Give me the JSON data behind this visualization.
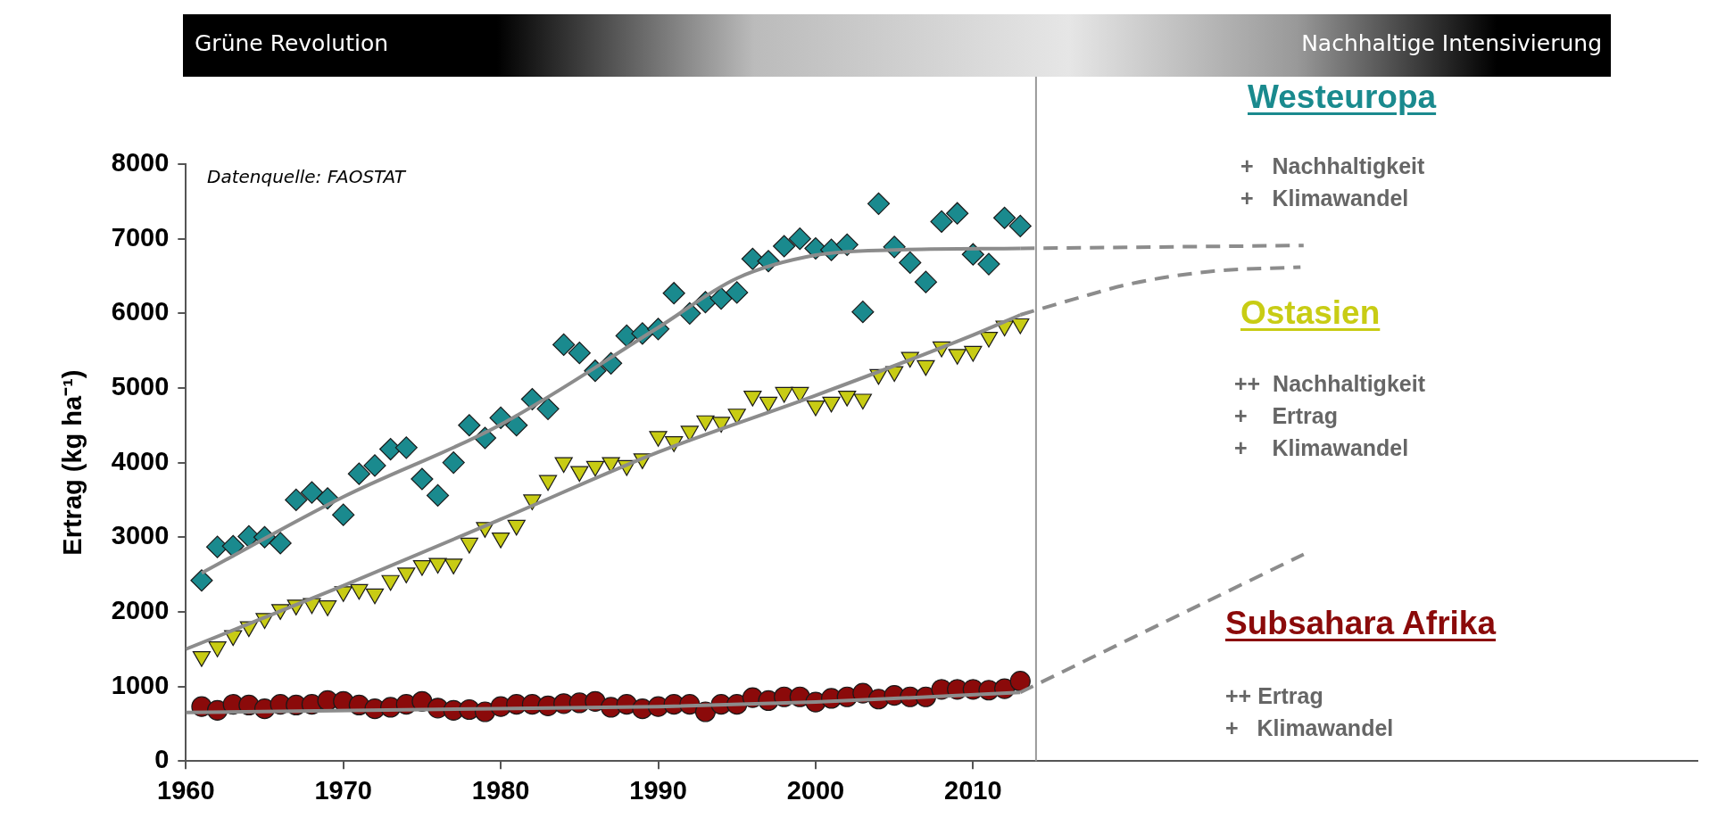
{
  "chart_data": {
    "type": "scatter",
    "ylabel": "Ertrag (kg ha⁻¹)",
    "xlim": [
      1960,
      2056
    ],
    "xticks": [
      1960,
      1970,
      1980,
      1990,
      2000,
      2010
    ],
    "ylim": [
      0,
      8000
    ],
    "yticks": [
      0,
      1000,
      2000,
      3000,
      4000,
      5000,
      6000,
      7000,
      8000
    ],
    "grid": false,
    "legend": false,
    "ref_lines": [
      {
        "axis": "x",
        "value": 2014,
        "color": "#999999"
      }
    ],
    "annotations": [
      "Grüne Revolution",
      "Nachhaltige Intensivierung",
      "Datenquelle: FAOSTAT",
      "+   Nachhaltigkeit\n+   Klimawandel",
      "++  Nachhaltigkeit\n+    Ertrag\n+    Klimawandel",
      "++ Ertrag\n+   Klimawandel"
    ],
    "series": [
      {
        "name": "Westeuropa",
        "marker": "diamond",
        "color": "#1a8a8e",
        "x": [
          1961,
          1962,
          1963,
          1964,
          1965,
          1966,
          1967,
          1968,
          1969,
          1970,
          1971,
          1972,
          1973,
          1974,
          1975,
          1976,
          1977,
          1978,
          1979,
          1980,
          1981,
          1982,
          1983,
          1984,
          1985,
          1986,
          1987,
          1988,
          1989,
          1990,
          1991,
          1992,
          1993,
          1994,
          1995,
          1996,
          1997,
          1998,
          1999,
          2000,
          2001,
          2002,
          2003,
          2004,
          2005,
          2006,
          2007,
          2008,
          2009,
          2010,
          2011,
          2012,
          2013
        ],
        "values": [
          2420,
          2870,
          2880,
          3010,
          3000,
          2920,
          3500,
          3600,
          3520,
          3300,
          3850,
          3960,
          4180,
          4200,
          3780,
          3560,
          4000,
          4500,
          4330,
          4600,
          4500,
          4850,
          4720,
          5580,
          5470,
          5230,
          5330,
          5700,
          5730,
          5790,
          6270,
          6000,
          6150,
          6200,
          6280,
          6730,
          6700,
          6900,
          7000,
          6870,
          6850,
          6920,
          6020,
          7470,
          6890,
          6680,
          6420,
          7230,
          7340,
          6790,
          6660,
          7280,
          7170
        ]
      },
      {
        "name": "Ostasien",
        "marker": "triangle",
        "color": "#c8cc14",
        "x": [
          1961,
          1962,
          1963,
          1964,
          1965,
          1966,
          1967,
          1968,
          1969,
          1970,
          1971,
          1972,
          1973,
          1974,
          1975,
          1976,
          1977,
          1978,
          1979,
          1980,
          1981,
          1982,
          1983,
          1984,
          1985,
          1986,
          1987,
          1988,
          1989,
          1990,
          1991,
          1992,
          1993,
          1994,
          1995,
          1996,
          1997,
          1998,
          1999,
          2000,
          2001,
          2002,
          2003,
          2004,
          2005,
          2006,
          2007,
          2008,
          2009,
          2010,
          2011,
          2012,
          2013
        ],
        "values": [
          1400,
          1530,
          1680,
          1800,
          1910,
          2030,
          2090,
          2110,
          2080,
          2270,
          2300,
          2240,
          2420,
          2520,
          2620,
          2650,
          2640,
          2920,
          3130,
          2990,
          3160,
          3500,
          3760,
          4000,
          3880,
          3950,
          4000,
          3960,
          4050,
          4350,
          4280,
          4420,
          4560,
          4540,
          4650,
          4890,
          4810,
          4940,
          4940,
          4760,
          4810,
          4890,
          4850,
          5180,
          5220,
          5410,
          5300,
          5550,
          5450,
          5490,
          5680,
          5830,
          5860
        ]
      },
      {
        "name": "Subsahara Afrika",
        "marker": "circle",
        "color": "#8b0a0a",
        "x": [
          1961,
          1962,
          1963,
          1964,
          1965,
          1966,
          1967,
          1968,
          1969,
          1970,
          1971,
          1972,
          1973,
          1974,
          1975,
          1976,
          1977,
          1978,
          1979,
          1980,
          1981,
          1982,
          1983,
          1984,
          1985,
          1986,
          1987,
          1988,
          1989,
          1990,
          1991,
          1992,
          1993,
          1994,
          1995,
          1996,
          1997,
          1998,
          1999,
          2000,
          2001,
          2002,
          2003,
          2004,
          2005,
          2006,
          2007,
          2008,
          2009,
          2010,
          2011,
          2012,
          2013
        ],
        "values": [
          730,
          680,
          760,
          750,
          700,
          760,
          750,
          760,
          810,
          800,
          750,
          700,
          720,
          760,
          800,
          710,
          680,
          690,
          660,
          730,
          760,
          760,
          740,
          770,
          780,
          800,
          720,
          760,
          700,
          730,
          760,
          760,
          660,
          760,
          760,
          850,
          810,
          860,
          860,
          790,
          840,
          860,
          910,
          830,
          880,
          860,
          860,
          960,
          960,
          960,
          950,
          970,
          1070
        ]
      },
      {
        "type": "line",
        "line_style": "solid",
        "marker": "none",
        "color": "#8c8c8c",
        "x": [
          1961,
          1970,
          1980,
          1990,
          1995,
          2000,
          2005,
          2013
        ],
        "values": [
          2520,
          3540,
          4510,
          5810,
          6470,
          6780,
          6850,
          6870
        ]
      },
      {
        "type": "line",
        "line_style": "dashed",
        "marker": "none",
        "color": "#8c8c8c",
        "x": [
          2013,
          2031
        ],
        "values": [
          6870,
          6910
        ]
      },
      {
        "type": "line",
        "line_style": "solid",
        "marker": "none",
        "color": "#8c8c8c",
        "x": [
          1960,
          1970,
          1980,
          1990,
          2000,
          2010,
          2013
        ],
        "values": [
          1500,
          2350,
          3240,
          4140,
          4900,
          5710,
          5980
        ]
      },
      {
        "type": "line",
        "line_style": "dashed",
        "marker": "none",
        "color": "#8c8c8c",
        "x": [
          2013,
          2016.4,
          2020.1,
          2025,
          2030.8
        ],
        "values": [
          5980,
          6190,
          6400,
          6560,
          6620
        ]
      },
      {
        "type": "line",
        "line_style": "solid",
        "marker": "none",
        "color": "#8c8c8c",
        "x": [
          1960,
          1975,
          1990,
          2000,
          2013
        ],
        "values": [
          650,
          690,
          730,
          790,
          920
        ]
      },
      {
        "type": "line",
        "line_style": "dashed",
        "marker": "none",
        "color": "#8c8c8c",
        "x": [
          2013,
          2031
        ],
        "values": [
          920,
          2770
        ]
      }
    ]
  }
}
